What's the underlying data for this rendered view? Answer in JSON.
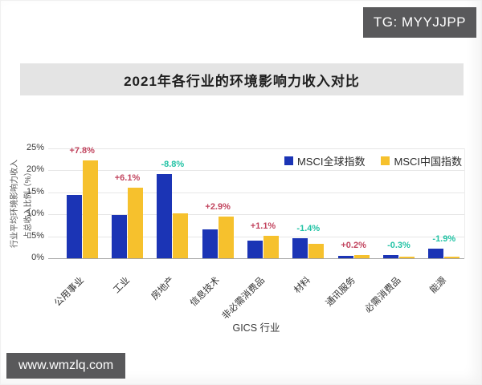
{
  "overlay": {
    "tg_badge": "TG: MYYJJPP",
    "site_badge": "www.wmzlq.com"
  },
  "colors": {
    "badge_bg": "#59595b",
    "banner_bg": "#e4e4e4",
    "positive_label": "#c2455f",
    "negative_label": "#22c3a5"
  },
  "chart_data": {
    "type": "bar",
    "title": "2021年各行业的环境影响力收入对比",
    "xlabel": "GICS 行业",
    "ylabel": [
      "行业平均环境影响力收入",
      "占总收入比例（%）"
    ],
    "ylim": [
      0,
      25
    ],
    "yticks": [
      "25%",
      "20%",
      "15%",
      "10%",
      "5%",
      "0%"
    ],
    "grid": true,
    "legend_position": "top-right",
    "categories": [
      "公用事业",
      "工业",
      "房地产",
      "信息技术",
      "非必需消费品",
      "材料",
      "通讯服务",
      "必需消费品",
      "能源"
    ],
    "series": [
      {
        "name": "MSCI全球指数",
        "color": "#1b34b5",
        "values": [
          14.5,
          9.9,
          19.1,
          6.6,
          4.1,
          4.6,
          0.5,
          0.7,
          2.2
        ]
      },
      {
        "name": "MSCI中国指数",
        "color": "#f6c12d",
        "values": [
          22.3,
          16.0,
          10.3,
          9.5,
          5.2,
          3.2,
          0.7,
          0.4,
          0.3
        ]
      }
    ],
    "diff_labels": [
      {
        "text": "+7.8%",
        "color": "#c2455f"
      },
      {
        "text": "+6.1%",
        "color": "#c2455f"
      },
      {
        "text": "-8.8%",
        "color": "#22c3a5"
      },
      {
        "text": "+2.9%",
        "color": "#c2455f"
      },
      {
        "text": "+1.1%",
        "color": "#c2455f"
      },
      {
        "text": "-1.4%",
        "color": "#22c3a5"
      },
      {
        "text": "+0.2%",
        "color": "#c2455f"
      },
      {
        "text": "-0.3%",
        "color": "#22c3a5"
      },
      {
        "text": "-1.9%",
        "color": "#22c3a5"
      }
    ]
  }
}
